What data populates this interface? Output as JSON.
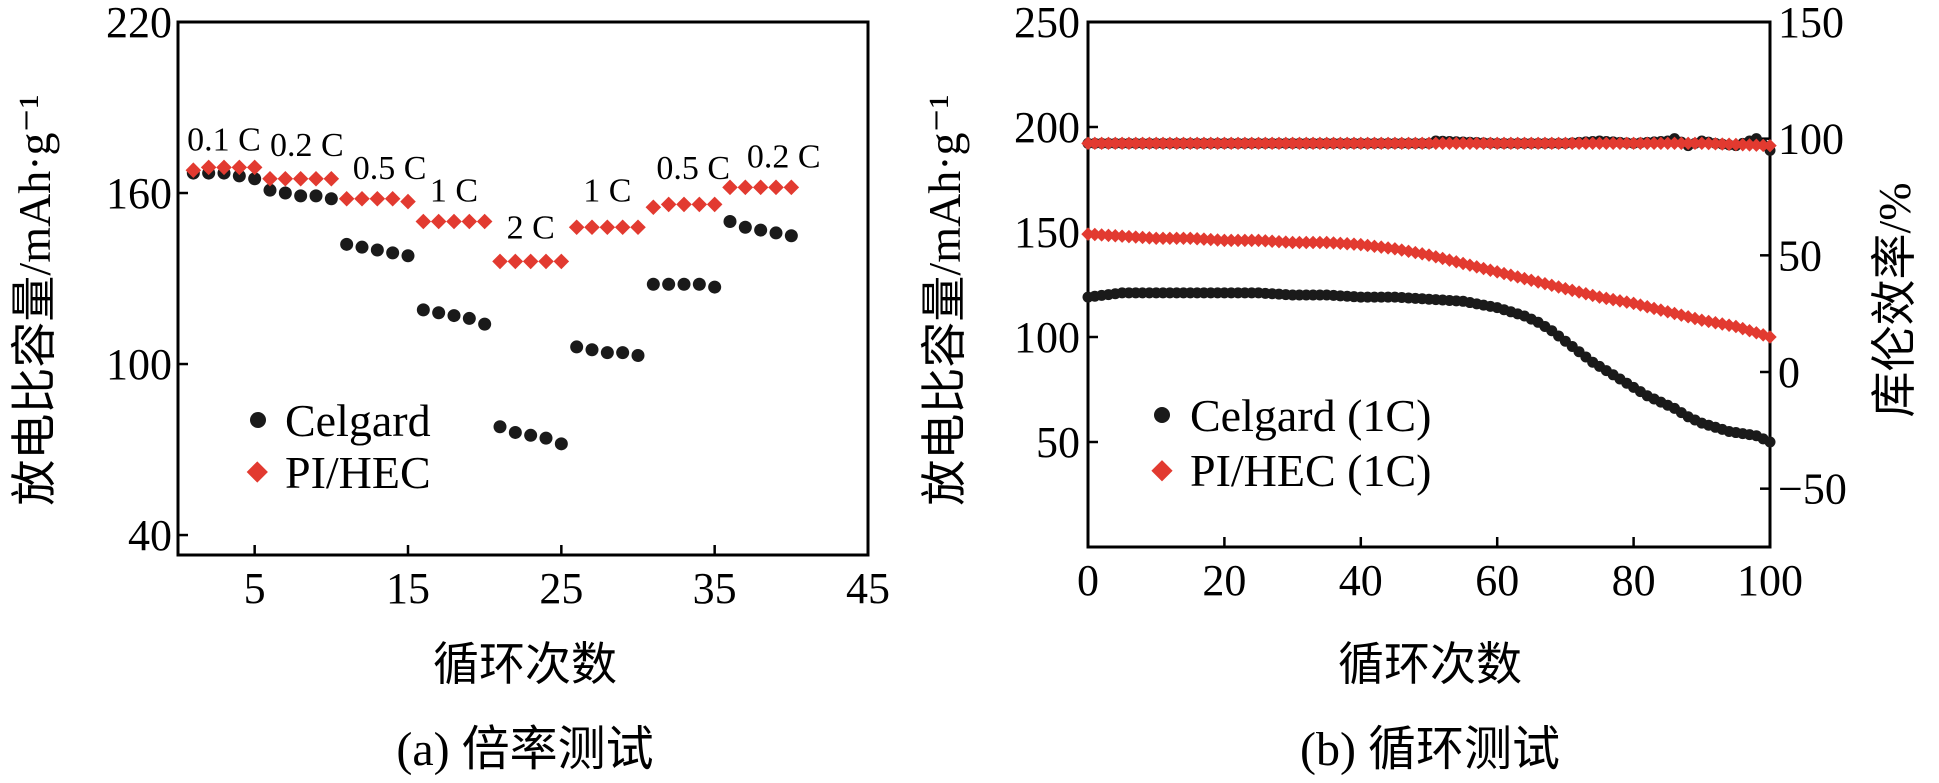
{
  "colors": {
    "celgard": "#1a1a1a",
    "pihec": "#e23a30"
  },
  "charts": {
    "a": {
      "type": "scatter",
      "caption": "(a) 倍率测试",
      "xlabel": "循环次数",
      "ylabel": "放电比容量/mAh·g⁻¹",
      "xlim": [
        0,
        45
      ],
      "ylim": [
        33,
        220
      ],
      "xticks": [
        5,
        15,
        25,
        35,
        45
      ],
      "yticks": [
        40,
        100,
        160,
        220
      ],
      "legend": [
        "Celgard",
        "PI/HEC"
      ],
      "legend_position": "lower-left",
      "rate_labels": [
        {
          "text": "0.1 C",
          "x": 3,
          "y": 175
        },
        {
          "text": "0.2 C",
          "x": 8.4,
          "y": 173
        },
        {
          "text": "0.5 C",
          "x": 13.8,
          "y": 165
        },
        {
          "text": "1 C",
          "x": 18,
          "y": 157
        },
        {
          "text": "2 C",
          "x": 23,
          "y": 144
        },
        {
          "text": "1 C",
          "x": 28,
          "y": 157
        },
        {
          "text": "0.5 C",
          "x": 33.6,
          "y": 165
        },
        {
          "text": "0.2 C",
          "x": 39.5,
          "y": 169
        }
      ]
    },
    "b": {
      "type": "scatter",
      "caption": "(b) 循环测试",
      "xlabel": "循环次数",
      "ylabel_left": "放电比容量/mAh·g⁻¹",
      "ylabel_right": "库伦效率/%",
      "xlim": [
        0,
        100
      ],
      "ylim_left": [
        0,
        250
      ],
      "ylim_right": [
        -75,
        150
      ],
      "xticks": [
        0,
        20,
        40,
        60,
        80,
        100
      ],
      "yticks_left": [
        50,
        100,
        150,
        200,
        250
      ],
      "yticks_right": [
        -50,
        0,
        50,
        100,
        150
      ],
      "legend": [
        "Celgard (1C)",
        "PI/HEC (1C)"
      ],
      "legend_position": "lower-left"
    }
  },
  "chart_data": [
    {
      "type": "scatter",
      "title": "",
      "xlabel": "循环次数",
      "ylabel": "放电比容量/mAh·g⁻¹",
      "xlim": [
        0,
        45
      ],
      "ylim": [
        33,
        220
      ],
      "series": [
        {
          "name": "Celgard",
          "x": [
            1,
            2,
            3,
            4,
            5,
            6,
            7,
            8,
            9,
            10,
            11,
            12,
            13,
            14,
            15,
            16,
            17,
            18,
            19,
            20,
            21,
            22,
            23,
            24,
            25,
            26,
            27,
            28,
            29,
            30,
            31,
            32,
            33,
            34,
            35,
            36,
            37,
            38,
            39,
            40
          ],
          "y": [
            167,
            167,
            167,
            166,
            165,
            161,
            160,
            159,
            159,
            158,
            142,
            141,
            140,
            139,
            138,
            119,
            118,
            117,
            116,
            114,
            78,
            76,
            75,
            74,
            72,
            106,
            105,
            104,
            104,
            103,
            128,
            128,
            128,
            128,
            127,
            150,
            148,
            147,
            146,
            145
          ]
        },
        {
          "name": "PI/HEC",
          "x": [
            1,
            2,
            3,
            4,
            5,
            6,
            7,
            8,
            9,
            10,
            11,
            12,
            13,
            14,
            15,
            16,
            17,
            18,
            19,
            20,
            21,
            22,
            23,
            24,
            25,
            26,
            27,
            28,
            29,
            30,
            31,
            32,
            33,
            34,
            35,
            36,
            37,
            38,
            39,
            40
          ],
          "y": [
            168,
            169,
            169,
            169,
            169,
            165,
            165,
            165,
            165,
            165,
            158,
            158,
            158,
            158,
            157,
            150,
            150,
            150,
            150,
            150,
            136,
            136,
            136,
            136,
            136,
            148,
            148,
            148,
            148,
            148,
            155,
            156,
            156,
            156,
            156,
            162,
            162,
            162,
            162,
            162
          ]
        }
      ]
    },
    {
      "type": "scatter",
      "title": "",
      "xlabel": "循环次数",
      "ylabel": "放电比容量/mAh·g⁻¹",
      "y2label": "库伦效率/%",
      "xlim": [
        0,
        100
      ],
      "ylim": [
        0,
        250
      ],
      "y2lim": [
        -75,
        150
      ],
      "series": [
        {
          "name": "Celgard (1C)",
          "axis": "left",
          "x": [
            0,
            5,
            10,
            15,
            20,
            25,
            30,
            35,
            40,
            45,
            50,
            55,
            60,
            62,
            64,
            66,
            68,
            70,
            72,
            74,
            76,
            78,
            80,
            82,
            84,
            86,
            88,
            90,
            92,
            94,
            96,
            98,
            100
          ],
          "y": [
            119,
            121,
            121,
            121,
            121,
            121,
            120,
            120,
            119,
            119,
            118,
            117,
            114,
            112,
            110,
            107,
            103,
            98,
            93,
            88,
            84,
            80,
            76,
            72,
            69,
            66,
            62,
            59,
            57,
            55,
            54,
            53,
            50
          ]
        },
        {
          "name": "PI/HEC (1C)",
          "axis": "left",
          "x": [
            0,
            5,
            10,
            15,
            20,
            25,
            30,
            35,
            40,
            45,
            50,
            55,
            60,
            65,
            70,
            75,
            80,
            85,
            90,
            95,
            100
          ],
          "y": [
            149,
            148,
            147,
            147,
            146,
            146,
            145,
            145,
            144,
            142,
            139,
            135,
            131,
            127,
            123,
            119,
            116,
            112,
            108,
            105,
            100
          ]
        },
        {
          "name": "Celgard (1C)",
          "axis": "right",
          "quantity": "库伦效率",
          "x": [
            0,
            10,
            20,
            30,
            40,
            50,
            51,
            60,
            70,
            75,
            80,
            85,
            86,
            88,
            90,
            92,
            95,
            98,
            100
          ],
          "y": [
            98,
            98,
            98,
            98,
            98,
            98,
            99,
            98,
            98,
            99,
            98,
            99,
            100,
            97,
            99,
            98,
            97,
            100,
            95
          ]
        },
        {
          "name": "PI/HEC (1C)",
          "axis": "right",
          "quantity": "库伦效率",
          "x": [
            0,
            10,
            20,
            30,
            40,
            50,
            60,
            70,
            80,
            90,
            100
          ],
          "y": [
            98,
            98,
            98,
            98,
            98,
            98,
            98,
            98,
            98,
            98,
            97
          ]
        }
      ]
    }
  ]
}
